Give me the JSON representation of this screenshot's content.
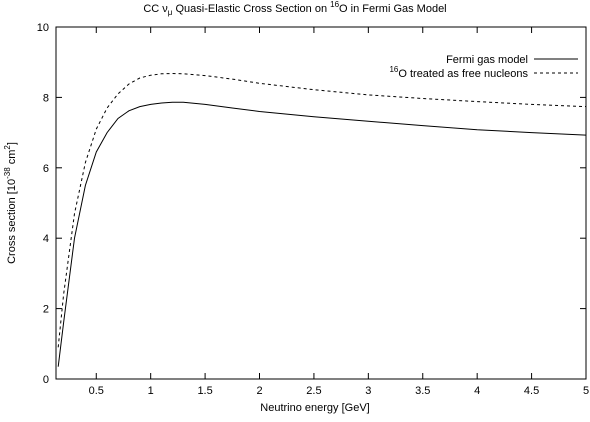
{
  "chart_data": {
    "type": "line",
    "title": {
      "prefix": "CC ν",
      "sub": "μ",
      "middle": " Quasi-Elastic Cross Section on ",
      "sup": "16",
      "suffix": "O in Fermi Gas Model"
    },
    "xlabel": "Neutrino energy [GeV]",
    "ylabel": {
      "prefix": "Cross section [10",
      "sup1": "-38",
      "middle": " cm",
      "sup2": "2",
      "suffix": "]"
    },
    "xlim": [
      0.13,
      5.0
    ],
    "ylim": [
      0,
      10
    ],
    "xticks": [
      0.5,
      1,
      1.5,
      2,
      2.5,
      3,
      3.5,
      4,
      4.5,
      5
    ],
    "xtick_labels": [
      "0.5",
      "1",
      "1.5",
      "2",
      "2.5",
      "3",
      "3.5",
      "4",
      "4.5",
      "5"
    ],
    "yticks": [
      0,
      2,
      4,
      6,
      8,
      10
    ],
    "ytick_labels": [
      "0",
      "2",
      "4",
      "6",
      "8",
      "10"
    ],
    "grid": false,
    "legend_position": "top-right",
    "series": [
      {
        "name": "Fermi gas model",
        "style": "solid",
        "color": "#000000",
        "x": [
          0.15,
          0.2,
          0.3,
          0.4,
          0.5,
          0.6,
          0.7,
          0.8,
          0.9,
          1.0,
          1.1,
          1.2,
          1.3,
          1.5,
          1.75,
          2.0,
          2.5,
          3.0,
          3.5,
          4.0,
          4.5,
          5.0
        ],
        "y": [
          0.35,
          1.6,
          4.0,
          5.5,
          6.45,
          7.0,
          7.4,
          7.62,
          7.74,
          7.8,
          7.84,
          7.86,
          7.86,
          7.8,
          7.7,
          7.6,
          7.45,
          7.32,
          7.2,
          7.08,
          7.0,
          6.93
        ]
      },
      {
        "name": "16O treated as free nucleons",
        "name_parts": {
          "sup": "16",
          "text": "O treated as free nucleons"
        },
        "style": "dashed",
        "color": "#000000",
        "x": [
          0.15,
          0.2,
          0.3,
          0.4,
          0.5,
          0.6,
          0.7,
          0.8,
          0.9,
          1.0,
          1.1,
          1.2,
          1.3,
          1.5,
          1.75,
          2.0,
          2.5,
          3.0,
          3.5,
          4.0,
          4.5,
          5.0
        ],
        "y": [
          0.9,
          2.4,
          4.7,
          6.15,
          7.1,
          7.7,
          8.1,
          8.38,
          8.55,
          8.63,
          8.67,
          8.68,
          8.67,
          8.62,
          8.52,
          8.4,
          8.22,
          8.07,
          7.97,
          7.88,
          7.8,
          7.74
        ]
      }
    ]
  }
}
